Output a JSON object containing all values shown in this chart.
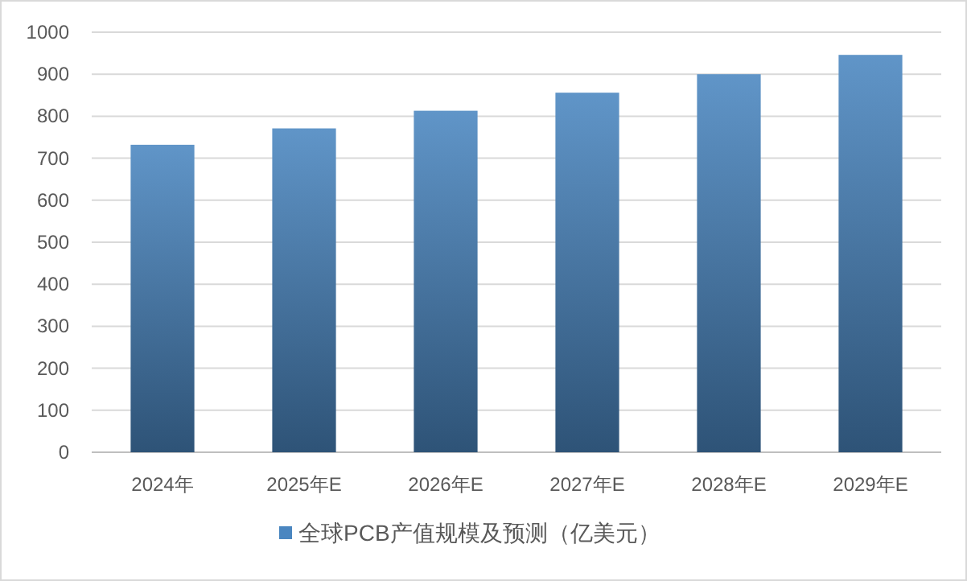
{
  "chart_data": {
    "type": "bar",
    "categories": [
      "2024年",
      "2025年E",
      "2026年E",
      "2027年E",
      "2028年E",
      "2029年E"
    ],
    "series": [
      {
        "name": "全球PCB产值规模及预测（亿美元）",
        "color": "#4a86c0",
        "values": [
          732,
          771,
          813,
          856,
          900,
          946
        ]
      }
    ],
    "ylim": [
      0,
      1000
    ],
    "yticks": [
      0,
      100,
      200,
      300,
      400,
      500,
      600,
      700,
      800,
      900,
      1000
    ],
    "grid": "y",
    "legend": "bottom"
  }
}
